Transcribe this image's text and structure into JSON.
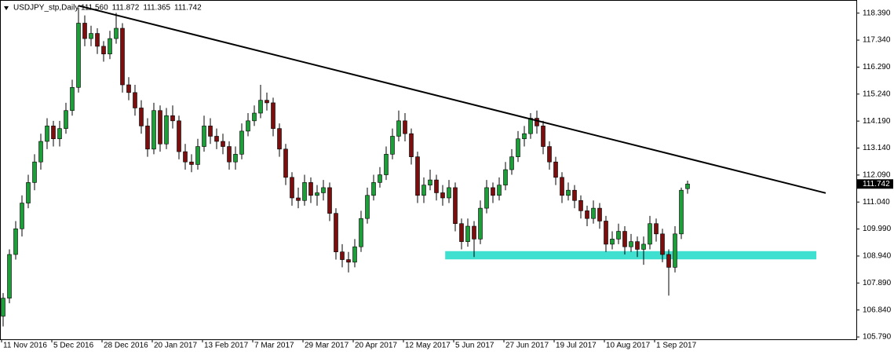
{
  "chart_data": {
    "type": "candlestick",
    "title": "USDJPY_stp,Daily",
    "header_values": [
      "111.560",
      "111.872",
      "111.365",
      "111.742"
    ],
    "categories": [
      "11 Nov 2016",
      null,
      null,
      null,
      null,
      null,
      null,
      null,
      "5 Dec 2016",
      null,
      null,
      null,
      null,
      null,
      null,
      null,
      "28 Dec 2016",
      null,
      null,
      null,
      null,
      null,
      null,
      null,
      "20 Jan 2017",
      null,
      null,
      null,
      null,
      null,
      null,
      null,
      "13 Feb 2017",
      null,
      null,
      null,
      null,
      null,
      null,
      null,
      "7 Mar 2017",
      null,
      null,
      null,
      null,
      null,
      null,
      null,
      "29 Mar 2017",
      null,
      null,
      null,
      null,
      null,
      null,
      null,
      "20 Apr 2017",
      null,
      null,
      null,
      null,
      null,
      null,
      null,
      "12 May 2017",
      null,
      null,
      null,
      null,
      null,
      null,
      null,
      "5 Jun 2017",
      null,
      null,
      null,
      null,
      null,
      null,
      null,
      "27 Jun 2017",
      null,
      null,
      null,
      null,
      null,
      null,
      null,
      "19 Jul 2017",
      null,
      null,
      null,
      null,
      null,
      null,
      null,
      "10 Aug 2017",
      null,
      null,
      null,
      null,
      null,
      null,
      null,
      "1 Sep 2017",
      null,
      null,
      null,
      null,
      null
    ],
    "ohlc": [
      [
        106.6,
        107.5,
        106.2,
        107.3
      ],
      [
        107.3,
        109.2,
        107.1,
        109.0
      ],
      [
        109.0,
        110.3,
        108.8,
        110.0
      ],
      [
        110.0,
        111.3,
        109.7,
        111.0
      ],
      [
        111.0,
        112.1,
        110.8,
        111.8
      ],
      [
        111.8,
        112.9,
        111.5,
        112.6
      ],
      [
        112.6,
        113.7,
        112.3,
        113.4
      ],
      [
        113.4,
        114.3,
        113.1,
        114.0
      ],
      [
        114.0,
        114.2,
        113.2,
        113.5
      ],
      [
        113.5,
        114.2,
        113.2,
        113.9
      ],
      [
        113.9,
        114.9,
        113.7,
        114.6
      ],
      [
        114.6,
        115.8,
        114.4,
        115.5
      ],
      [
        115.5,
        118.6,
        115.3,
        118.0
      ],
      [
        118.0,
        118.3,
        117.1,
        117.4
      ],
      [
        117.4,
        117.9,
        117.1,
        117.6
      ],
      [
        117.6,
        117.8,
        116.8,
        117.1
      ],
      [
        117.1,
        117.3,
        116.5,
        116.8
      ],
      [
        116.8,
        117.7,
        116.6,
        117.4
      ],
      [
        117.4,
        118.4,
        117.2,
        117.8
      ],
      [
        117.8,
        118.0,
        115.3,
        115.6
      ],
      [
        115.6,
        115.9,
        115.0,
        115.3
      ],
      [
        115.3,
        115.6,
        114.4,
        114.7
      ],
      [
        114.7,
        115.0,
        113.7,
        114.0
      ],
      [
        114.0,
        114.3,
        112.8,
        113.1
      ],
      [
        113.1,
        114.9,
        112.9,
        114.6
      ],
      [
        114.6,
        114.8,
        113.0,
        113.3
      ],
      [
        113.3,
        114.7,
        113.1,
        114.4
      ],
      [
        114.4,
        114.8,
        113.9,
        114.2
      ],
      [
        114.2,
        114.4,
        112.7,
        113.0
      ],
      [
        113.0,
        113.3,
        112.3,
        112.6
      ],
      [
        112.6,
        112.9,
        112.2,
        112.5
      ],
      [
        112.5,
        113.5,
        112.3,
        113.2
      ],
      [
        113.2,
        114.4,
        113.0,
        114.0
      ],
      [
        114.0,
        114.3,
        113.3,
        113.6
      ],
      [
        113.6,
        113.9,
        113.1,
        113.4
      ],
      [
        113.4,
        113.7,
        112.9,
        113.2
      ],
      [
        113.2,
        113.4,
        112.3,
        112.6
      ],
      [
        112.6,
        113.2,
        112.3,
        112.9
      ],
      [
        112.9,
        114.1,
        112.7,
        113.8
      ],
      [
        113.8,
        114.5,
        113.6,
        114.2
      ],
      [
        114.2,
        114.8,
        114.0,
        114.5
      ],
      [
        114.5,
        115.6,
        114.3,
        115.0
      ],
      [
        115.0,
        115.3,
        114.6,
        114.9
      ],
      [
        114.9,
        115.1,
        113.6,
        113.9
      ],
      [
        113.9,
        114.1,
        112.8,
        113.1
      ],
      [
        113.1,
        113.3,
        111.7,
        112.0
      ],
      [
        112.0,
        112.2,
        110.9,
        111.2
      ],
      [
        111.2,
        111.6,
        110.8,
        111.1
      ],
      [
        111.1,
        112.1,
        110.9,
        111.8
      ],
      [
        111.8,
        112.0,
        111.0,
        111.3
      ],
      [
        111.3,
        111.7,
        110.9,
        111.4
      ],
      [
        111.4,
        111.9,
        111.1,
        111.6
      ],
      [
        111.6,
        111.8,
        110.3,
        110.6
      ],
      [
        110.6,
        110.8,
        108.8,
        109.1
      ],
      [
        109.1,
        109.4,
        108.5,
        108.8
      ],
      [
        108.8,
        109.1,
        108.3,
        108.7
      ],
      [
        108.7,
        109.6,
        108.5,
        109.3
      ],
      [
        109.3,
        110.7,
        109.1,
        110.4
      ],
      [
        110.4,
        111.6,
        110.2,
        111.3
      ],
      [
        111.3,
        112.1,
        111.1,
        111.8
      ],
      [
        111.8,
        112.4,
        111.6,
        112.1
      ],
      [
        112.1,
        113.2,
        111.9,
        112.9
      ],
      [
        112.9,
        113.9,
        112.7,
        113.6
      ],
      [
        113.6,
        114.6,
        113.4,
        114.2
      ],
      [
        114.2,
        114.5,
        113.4,
        113.7
      ],
      [
        113.7,
        113.9,
        112.5,
        112.8
      ],
      [
        112.8,
        113.0,
        111.0,
        111.3
      ],
      [
        111.3,
        112.0,
        111.0,
        111.7
      ],
      [
        111.7,
        112.3,
        111.5,
        111.9
      ],
      [
        111.9,
        112.1,
        111.1,
        111.4
      ],
      [
        111.4,
        111.7,
        110.9,
        111.2
      ],
      [
        111.2,
        111.9,
        111.0,
        111.6
      ],
      [
        111.6,
        111.8,
        109.9,
        110.2
      ],
      [
        110.2,
        110.4,
        109.2,
        109.5
      ],
      [
        109.5,
        110.4,
        109.3,
        110.1
      ],
      [
        110.1,
        110.3,
        108.9,
        109.6
      ],
      [
        109.6,
        111.1,
        109.4,
        110.8
      ],
      [
        110.8,
        111.9,
        110.6,
        111.6
      ],
      [
        111.6,
        111.8,
        111.0,
        111.3
      ],
      [
        111.3,
        112.0,
        111.1,
        111.7
      ],
      [
        111.7,
        112.6,
        111.5,
        112.3
      ],
      [
        112.3,
        113.1,
        112.1,
        112.8
      ],
      [
        112.8,
        113.8,
        112.6,
        113.5
      ],
      [
        113.5,
        114.0,
        113.2,
        113.7
      ],
      [
        113.7,
        114.5,
        113.5,
        114.3
      ],
      [
        114.3,
        114.6,
        113.7,
        114.0
      ],
      [
        114.0,
        114.2,
        112.9,
        113.2
      ],
      [
        113.2,
        113.4,
        112.3,
        112.6
      ],
      [
        112.6,
        112.8,
        111.7,
        112.0
      ],
      [
        112.0,
        112.2,
        111.0,
        111.3
      ],
      [
        111.3,
        111.8,
        111.1,
        111.5
      ],
      [
        111.5,
        111.7,
        110.8,
        111.1
      ],
      [
        111.1,
        111.3,
        110.4,
        110.7
      ],
      [
        110.7,
        110.9,
        110.1,
        110.4
      ],
      [
        110.4,
        111.1,
        110.2,
        110.8
      ],
      [
        110.8,
        111.0,
        110.0,
        110.3
      ],
      [
        110.3,
        110.5,
        109.1,
        109.4
      ],
      [
        109.4,
        109.9,
        109.2,
        109.6
      ],
      [
        109.6,
        110.2,
        109.4,
        109.9
      ],
      [
        109.9,
        110.1,
        109.0,
        109.3
      ],
      [
        109.3,
        109.8,
        109.1,
        109.5
      ],
      [
        109.5,
        109.7,
        108.9,
        109.2
      ],
      [
        109.2,
        109.7,
        108.6,
        109.4
      ],
      [
        109.4,
        110.5,
        109.2,
        110.2
      ],
      [
        110.2,
        110.4,
        109.5,
        109.8
      ],
      [
        109.8,
        110.0,
        108.7,
        109.0
      ],
      [
        109.0,
        109.2,
        107.4,
        108.5
      ],
      [
        108.5,
        110.1,
        108.3,
        109.8
      ],
      [
        109.8,
        111.6,
        109.6,
        111.5
      ],
      [
        111.56,
        111.872,
        111.365,
        111.742
      ]
    ],
    "colors": {
      "up": "#1f9d3a",
      "down": "#7a0f0f",
      "wick": "#000000"
    },
    "ylim": [
      105.7,
      118.87
    ],
    "yticks": [
      {
        "value": 118.39,
        "label": "118.390"
      },
      {
        "value": 117.34,
        "label": "117.340"
      },
      {
        "value": 116.29,
        "label": "116.290"
      },
      {
        "value": 115.24,
        "label": "115.240"
      },
      {
        "value": 114.19,
        "label": "114.190"
      },
      {
        "value": 113.14,
        "label": "113.140"
      },
      {
        "value": 112.09,
        "label": "112.090"
      },
      {
        "value": 111.04,
        "label": "111.040"
      },
      {
        "value": 109.99,
        "label": "109.990"
      },
      {
        "value": 108.94,
        "label": "108.940"
      },
      {
        "value": 107.89,
        "label": "107.890"
      },
      {
        "value": 106.84,
        "label": "106.840"
      },
      {
        "value": 105.79,
        "label": "105.790"
      }
    ],
    "last_price": {
      "value": 111.742,
      "label": "111.742"
    },
    "trendline": {
      "from": [
        12,
        118.68
      ],
      "to": [
        131,
        111.39
      ],
      "color": "#000000"
    },
    "zone": {
      "from": 70.4,
      "to": 129.5,
      "top": 109.13,
      "bottom": 108.81,
      "color": "#40e0d0"
    }
  }
}
